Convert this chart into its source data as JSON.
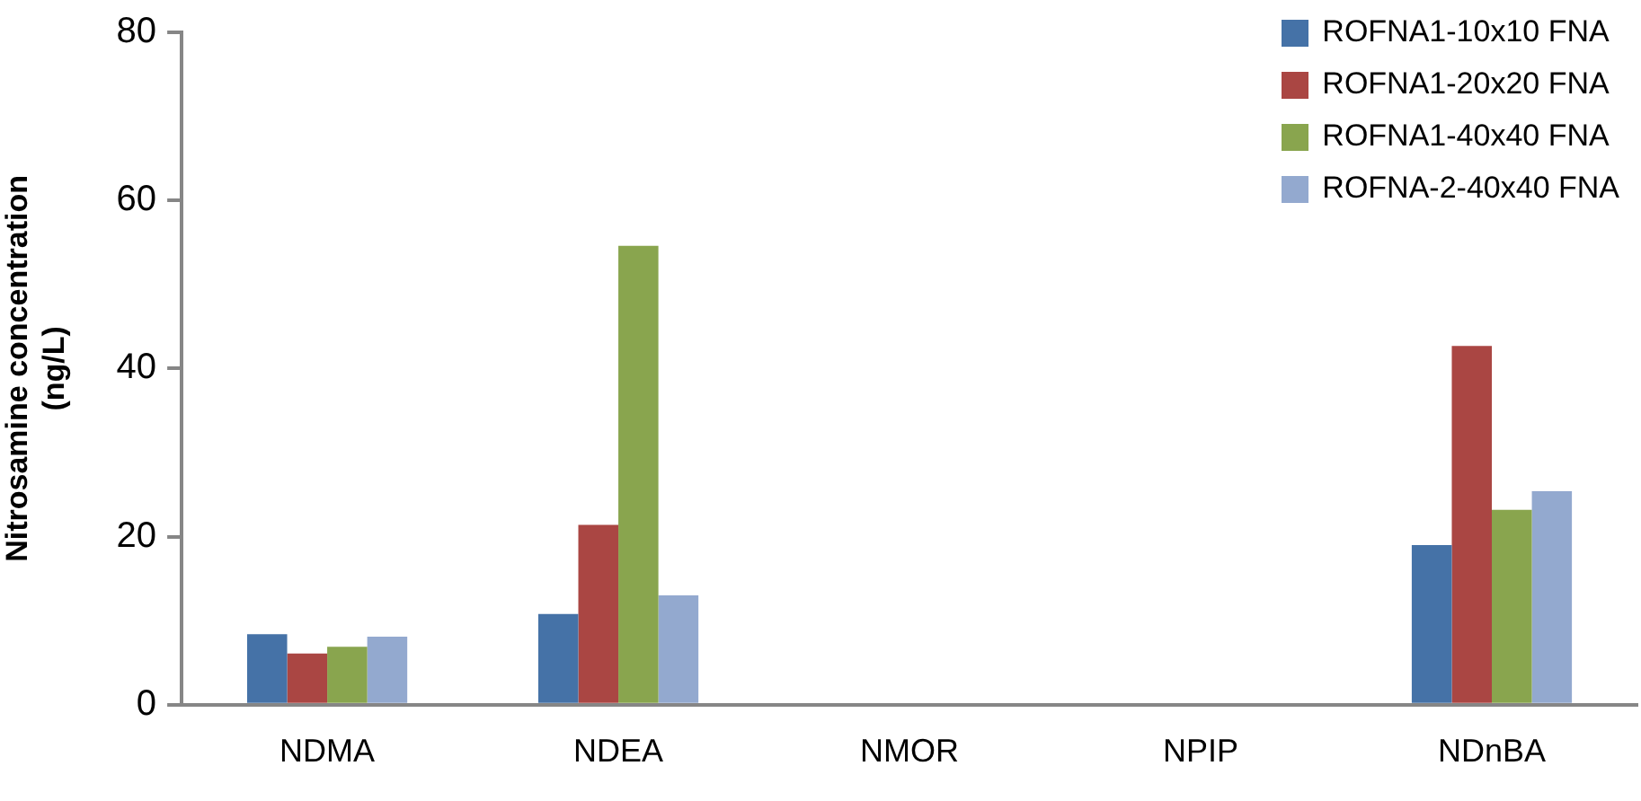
{
  "chart_data": {
    "type": "bar",
    "ylabel": "Nitrosamine concentration\n(ng/L)",
    "categories": [
      "NDMA",
      "NDEA",
      "NMOR",
      "NPIP",
      "NDnBA"
    ],
    "series": [
      {
        "name": "ROFNA1-10x10 FNA",
        "color": "#4572a7",
        "values": [
          8.4,
          10.8,
          0,
          0,
          19.0
        ]
      },
      {
        "name": "ROFNA1-20x20 FNA",
        "color": "#aa4643",
        "values": [
          6.1,
          21.4,
          0,
          0,
          42.7
        ]
      },
      {
        "name": "ROFNA1-40x40 FNA",
        "color": "#89a54e",
        "values": [
          6.9,
          54.6,
          0,
          0,
          23.2
        ]
      },
      {
        "name": "ROFNA-2-40x40 FNA",
        "color": "#93a9cf",
        "values": [
          8.1,
          13.0,
          0,
          0,
          25.4
        ]
      }
    ],
    "ylim": [
      0,
      80
    ],
    "yticks": [
      0,
      20,
      40,
      60,
      80
    ],
    "grid": false,
    "legend": "top right"
  }
}
